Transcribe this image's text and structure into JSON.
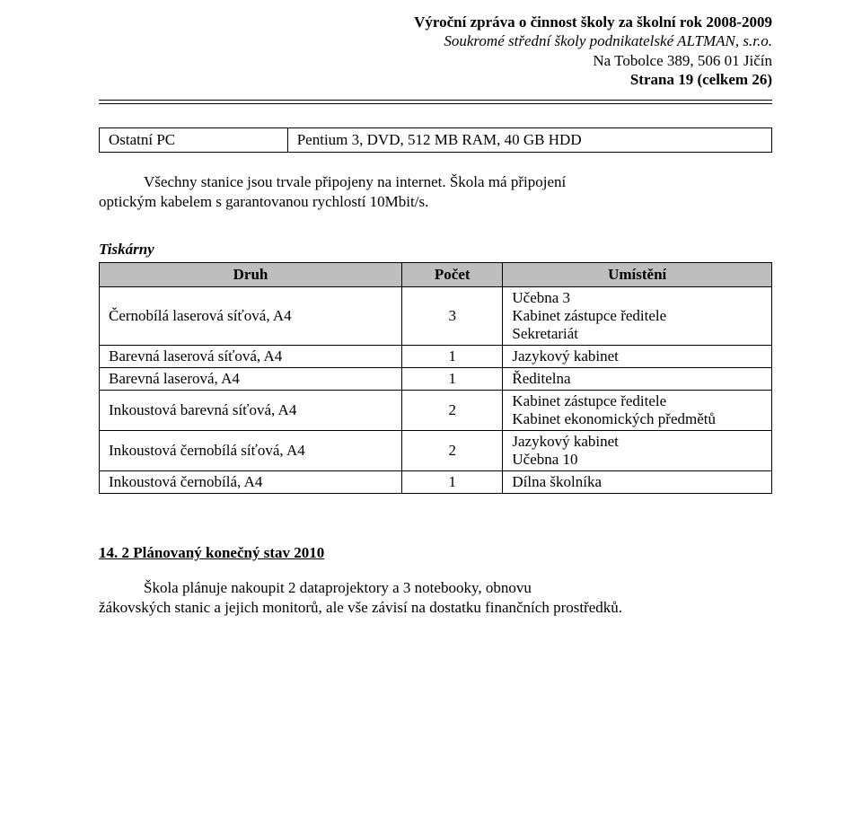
{
  "header": {
    "line1": "Výroční zpráva o činnost školy za školní rok 2008-2009",
    "line2": "Soukromé střední školy podnikatelské ALTMAN, s.r.o.",
    "line3": "Na Tobolce 389, 506 01 Jičín",
    "line4": "Strana 19 (celkem 26)"
  },
  "pc_table": {
    "rows": [
      {
        "name": "Ostatní PC",
        "spec": "Pentium 3, DVD, 512 MB RAM, 40 GB HDD"
      }
    ]
  },
  "body": {
    "p1_line1": "Všechny stanice jsou trvale připojeny na internet. Škola má připojení",
    "p1_line2": "optickým kabelem  s garantovanou rychlostí 10Mbit/s.",
    "printers_heading": "Tiskárny"
  },
  "printer_table": {
    "header": {
      "c1": "Druh",
      "c2": "Počet",
      "c3": "Umístění"
    },
    "rows": [
      {
        "kind": "Černobílá laserová síťová, A4",
        "count": "3",
        "place": "Učebna 3\nKabinet zástupce ředitele\nSekretariát"
      },
      {
        "kind": "Barevná laserová síťová, A4",
        "count": "1",
        "place": "Jazykový kabinet"
      },
      {
        "kind": "Barevná laserová, A4",
        "count": "1",
        "place": "Ředitelna"
      },
      {
        "kind": "Inkoustová barevná síťová, A4",
        "count": "2",
        "place": "Kabinet zástupce ředitele\nKabinet ekonomických předmětů"
      },
      {
        "kind": "Inkoustová černobílá síťová, A4",
        "count": "2",
        "place": "Jazykový kabinet\nUčebna 10"
      },
      {
        "kind": "Inkoustová černobílá, A4",
        "count": "1",
        "place": "Dílna školníka"
      }
    ]
  },
  "section14": {
    "heading": "14. 2  Plánovaný konečný stav 2010",
    "p_line1": "Škola plánuje nakoupit 2 dataprojektory a 3 notebooky, obnovu",
    "p_line2": "žákovských stanic a jejich monitorů, ale vše závisí na dostatku finančních prostředků."
  }
}
